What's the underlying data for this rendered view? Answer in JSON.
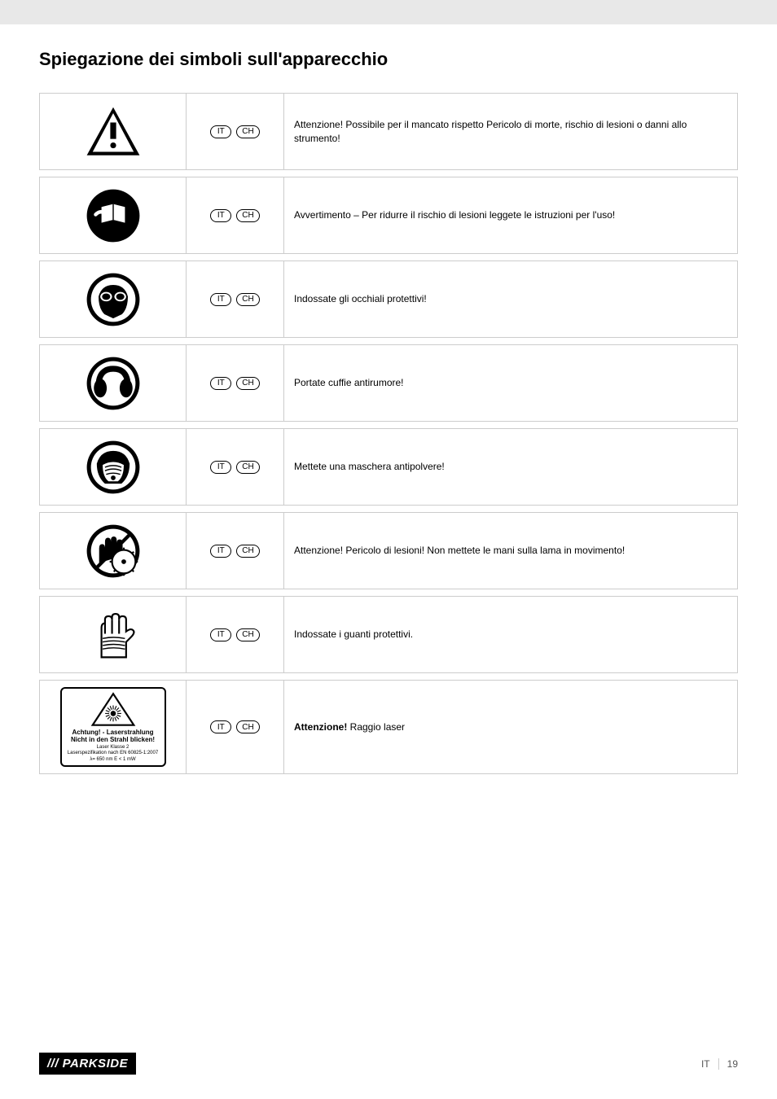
{
  "heading": "Spiegazione dei simboli sull'apparecchio",
  "lang_codes": [
    "IT",
    "CH"
  ],
  "rows": [
    {
      "icon": "warning-triangle",
      "text": "Attenzione! Possibile per il mancato rispetto Pericolo di morte, rischio di lesioni o danni allo strumento!"
    },
    {
      "icon": "read-manual",
      "text": "Avvertimento – Per ridurre il rischio di lesioni leggete le istruzioni per l'uso!"
    },
    {
      "icon": "goggles",
      "text": "Indossate gli occhiali protettivi!"
    },
    {
      "icon": "ear-protection",
      "text": "Portate cuffie antirumore!"
    },
    {
      "icon": "dust-mask",
      "text": "Mettete una maschera antipolvere!"
    },
    {
      "icon": "blade-hand",
      "text": "Attenzione! Pericolo di lesioni! Non mettete le mani sulla lama in movimento!"
    },
    {
      "icon": "gloves",
      "text": "Indossate i guanti protettivi."
    },
    {
      "icon": "laser-warning",
      "text_bold": "Attenzione!",
      "text": " Raggio laser"
    }
  ],
  "laser_label": {
    "line1": "Achtung! - Laserstrahlung",
    "line2": "Nicht in den Strahl blicken!",
    "line3": "Laser Klasse 2",
    "line4": "Laserspezifikation nach EN 60825-1:2007",
    "line5": "λ= 650 nm        E < 1 mW"
  },
  "logo": "/// PARKSIDE",
  "footer_lang": "IT",
  "page_number": "19"
}
